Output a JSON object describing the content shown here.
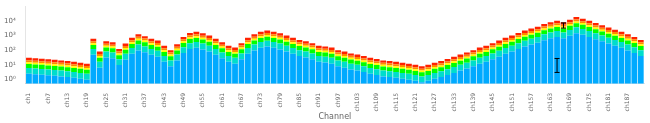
{
  "chart_data": {
    "type": "bar",
    "xlabel": "Channel",
    "stacked": true,
    "log": "y",
    "grid": false,
    "categories": [
      "ch1",
      null,
      null,
      "ch7",
      null,
      null,
      "ch13",
      null,
      null,
      "ch19",
      null,
      null,
      "ch25",
      null,
      null,
      "ch31",
      null,
      null,
      "ch37",
      null,
      null,
      "ch43",
      null,
      null,
      "ch49",
      null,
      null,
      "ch55",
      null,
      null,
      "ch61",
      null,
      null,
      "ch67",
      null,
      null,
      "ch73",
      null,
      null,
      "ch79",
      null,
      null,
      "ch85",
      null,
      null,
      "ch91",
      null,
      null,
      "ch97",
      null,
      null,
      "ch103",
      null,
      null,
      "ch109",
      null,
      null,
      "ch115",
      null,
      null,
      "ch121",
      null,
      null,
      "ch127",
      null,
      null,
      "ch133",
      null,
      null,
      "ch139",
      null,
      null,
      "ch145",
      null,
      null,
      "ch151",
      null,
      null,
      "ch157",
      null,
      null,
      "ch163",
      null,
      null,
      "ch169",
      null,
      null,
      "ch175",
      null,
      null,
      "ch181",
      null,
      null,
      "ch187",
      null,
      null
    ],
    "series": [
      {
        "color": "#00aaff",
        "values": [
          2.4,
          2.24,
          2.08,
          1.92,
          1.76,
          1.6,
          1.44,
          1.28,
          1.12,
          0.96,
          48,
          6.4,
          32,
          28,
          9.6,
          22.4,
          56,
          96,
          72,
          48,
          36,
          16,
          8,
          20,
          64,
          120,
          144,
          112,
          80,
          48,
          28,
          16,
          12,
          24,
          56,
          96,
          144,
          176,
          144,
          112,
          80,
          56,
          40,
          32,
          24,
          16,
          14.4,
          12,
          8,
          6.4,
          4.8,
          4,
          3.2,
          2.4,
          2,
          1.6,
          1.44,
          1.28,
          1.12,
          0.96,
          0.8,
          0.64,
          0.8,
          1.12,
          1.44,
          2,
          2.8,
          4,
          5.6,
          8,
          12,
          16,
          24,
          36,
          56,
          80,
          120,
          176,
          240,
          320,
          480,
          640,
          800,
          640,
          960,
          1440,
          1120,
          800,
          560,
          400,
          280,
          200,
          144,
          96,
          64,
          40
        ]
      },
      {
        "color": "#00ddcc",
        "values": [
          3.6,
          3.36,
          3.12,
          2.88,
          2.64,
          2.4,
          2.16,
          1.92,
          1.68,
          1.44,
          72,
          9.6,
          48,
          42,
          14.4,
          33.6,
          84,
          144,
          108,
          72,
          54,
          24,
          12,
          30,
          96,
          180,
          216,
          168,
          120,
          72,
          42,
          24,
          18,
          36,
          84,
          144,
          216,
          264,
          216,
          168,
          120,
          84,
          60,
          48,
          36,
          24,
          21.6,
          18,
          12,
          9.6,
          7.2,
          6,
          4.8,
          3.6,
          3,
          2.4,
          2.16,
          1.92,
          1.68,
          1.44,
          1.2,
          0.96,
          1.2,
          1.68,
          2.16,
          3,
          4.2,
          6,
          8.4,
          12,
          18,
          24,
          36,
          54,
          84,
          120,
          180,
          264,
          360,
          480,
          720,
          960,
          1200,
          960,
          1440,
          2160,
          1680,
          1200,
          840,
          600,
          420,
          300,
          216,
          144,
          96,
          60
        ]
      },
      {
        "color": "#00ff00",
        "values": [
          5.4,
          5.04,
          4.68,
          4.32,
          3.96,
          3.6,
          3.24,
          2.88,
          2.52,
          2.16,
          108,
          14.4,
          72,
          63,
          21.6,
          50.4,
          126,
          216,
          162,
          108,
          81,
          36,
          18,
          45,
          144,
          270,
          324,
          252,
          180,
          108,
          63,
          36,
          27,
          54,
          126,
          216,
          324,
          396,
          324,
          252,
          180,
          126,
          90,
          72,
          54,
          36,
          32.4,
          27,
          18,
          14.4,
          10.8,
          9,
          7.2,
          5.4,
          4.5,
          3.6,
          3.24,
          2.88,
          2.52,
          2.16,
          1.8,
          1.44,
          1.8,
          2.52,
          3.24,
          4.5,
          6.3,
          9,
          12.6,
          18,
          27,
          36,
          54,
          81,
          126,
          180,
          270,
          396,
          540,
          720,
          1080,
          1440,
          1800,
          1440,
          2160,
          3240,
          2520,
          1800,
          1260,
          900,
          630,
          450,
          324,
          216,
          144,
          90
        ]
      },
      {
        "color": "#ffff00",
        "values": [
          3.6,
          3.36,
          3.12,
          2.88,
          2.64,
          2.4,
          2.16,
          1.92,
          1.68,
          1.44,
          72,
          9.6,
          48,
          42,
          14.4,
          33.6,
          84,
          144,
          108,
          72,
          54,
          24,
          12,
          30,
          96,
          180,
          216,
          168,
          120,
          72,
          42,
          24,
          18,
          36,
          84,
          144,
          216,
          264,
          216,
          168,
          120,
          84,
          60,
          48,
          36,
          24,
          21.6,
          18,
          12,
          9.6,
          7.2,
          6,
          4.8,
          3.6,
          3,
          2.4,
          2.16,
          1.92,
          1.68,
          1.44,
          1.2,
          0.96,
          1.2,
          1.68,
          2.16,
          3,
          4.2,
          6,
          8.4,
          12,
          18,
          24,
          36,
          54,
          84,
          120,
          180,
          264,
          360,
          480,
          720,
          960,
          1200,
          960,
          1440,
          2160,
          1680,
          1200,
          840,
          600,
          420,
          300,
          216,
          144,
          96,
          60
        ]
      },
      {
        "color": "#ff8800",
        "values": [
          5.4,
          5.04,
          4.68,
          4.32,
          3.96,
          3.6,
          3.24,
          2.88,
          2.52,
          2.16,
          108,
          14.4,
          72,
          63,
          21.6,
          50.4,
          126,
          216,
          162,
          108,
          81,
          36,
          18,
          45,
          144,
          270,
          324,
          252,
          180,
          108,
          63,
          36,
          27,
          54,
          126,
          216,
          324,
          396,
          324,
          252,
          180,
          126,
          90,
          72,
          54,
          36,
          32.4,
          27,
          18,
          14.4,
          10.8,
          9,
          7.2,
          5.4,
          4.5,
          3.6,
          3.24,
          2.88,
          2.52,
          2.16,
          1.8,
          1.44,
          1.8,
          2.52,
          3.24,
          4.5,
          6.3,
          9,
          12.6,
          18,
          27,
          36,
          54,
          81,
          126,
          180,
          270,
          396,
          540,
          720,
          1080,
          1440,
          1800,
          1440,
          2160,
          3240,
          2520,
          1800,
          1260,
          900,
          630,
          450,
          324,
          216,
          144,
          90
        ]
      },
      {
        "color": "#ff2200",
        "values": [
          9.6,
          8.96,
          8.32,
          7.68,
          7.04,
          6.4,
          5.76,
          5.12,
          4.48,
          3.84,
          192,
          25.6,
          128,
          112,
          38.4,
          89.6,
          224,
          384,
          288,
          192,
          144,
          64,
          32,
          80,
          256,
          480,
          576,
          448,
          320,
          192,
          112,
          64,
          48,
          96,
          224,
          384,
          576,
          704,
          576,
          448,
          320,
          224,
          160,
          128,
          96,
          64,
          57.6,
          48,
          32,
          25.6,
          19.2,
          16,
          12.8,
          9.6,
          8,
          6.4,
          5.76,
          5.12,
          4.48,
          3.84,
          3.2,
          2.56,
          3.2,
          4.48,
          5.76,
          8,
          11.2,
          16,
          22.4,
          32,
          48,
          64,
          96,
          144,
          224,
          320,
          480,
          704,
          960,
          1280,
          1920,
          2560,
          3200,
          2560,
          3840,
          5760,
          4480,
          3200,
          2240,
          1600,
          1120,
          800,
          576,
          384,
          256,
          160
        ]
      }
    ],
    "error_bars": {
      "values": [
        null,
        null,
        null,
        null,
        null,
        null,
        null,
        null,
        null,
        null,
        null,
        null,
        null,
        null,
        null,
        null,
        null,
        null,
        null,
        null,
        null,
        null,
        null,
        null,
        null,
        null,
        null,
        null,
        null,
        null,
        null,
        null,
        null,
        null,
        null,
        null,
        null,
        null,
        null,
        null,
        null,
        null,
        null,
        null,
        null,
        null,
        null,
        null,
        null,
        null,
        null,
        null,
        null,
        null,
        null,
        null,
        null,
        null,
        null,
        null,
        null,
        null,
        null,
        null,
        null,
        null,
        null,
        null,
        null,
        null,
        null,
        null,
        null,
        null,
        null,
        null,
        null,
        null,
        null,
        null,
        null,
        null,
        15,
        5200,
        null,
        null,
        null,
        null,
        null,
        null,
        null,
        null,
        null,
        null,
        null,
        null
      ],
      "errors": [
        null,
        null,
        null,
        null,
        null,
        null,
        null,
        null,
        null,
        null,
        null,
        null,
        null,
        null,
        null,
        null,
        null,
        null,
        null,
        null,
        null,
        null,
        null,
        null,
        null,
        null,
        null,
        null,
        null,
        null,
        null,
        null,
        null,
        null,
        null,
        null,
        null,
        null,
        null,
        null,
        null,
        null,
        null,
        null,
        null,
        null,
        null,
        null,
        null,
        null,
        null,
        null,
        null,
        null,
        null,
        null,
        null,
        null,
        null,
        null,
        null,
        null,
        null,
        null,
        null,
        null,
        null,
        null,
        null,
        null,
        null,
        null,
        null,
        null,
        null,
        null,
        null,
        null,
        null,
        null,
        null,
        null,
        12,
        2000,
        null,
        null,
        null,
        null,
        null,
        null,
        null,
        null,
        null,
        null,
        null,
        null
      ]
    },
    "ylim": [
      0.5,
      100000
    ],
    "yticks": [
      {
        "value": 1,
        "label": "10⁰"
      },
      {
        "value": 10,
        "label": "10¹"
      },
      {
        "value": 100,
        "label": "10²"
      },
      {
        "value": 1000,
        "label": "10³"
      },
      {
        "value": 10000,
        "label": "10⁴"
      }
    ]
  }
}
